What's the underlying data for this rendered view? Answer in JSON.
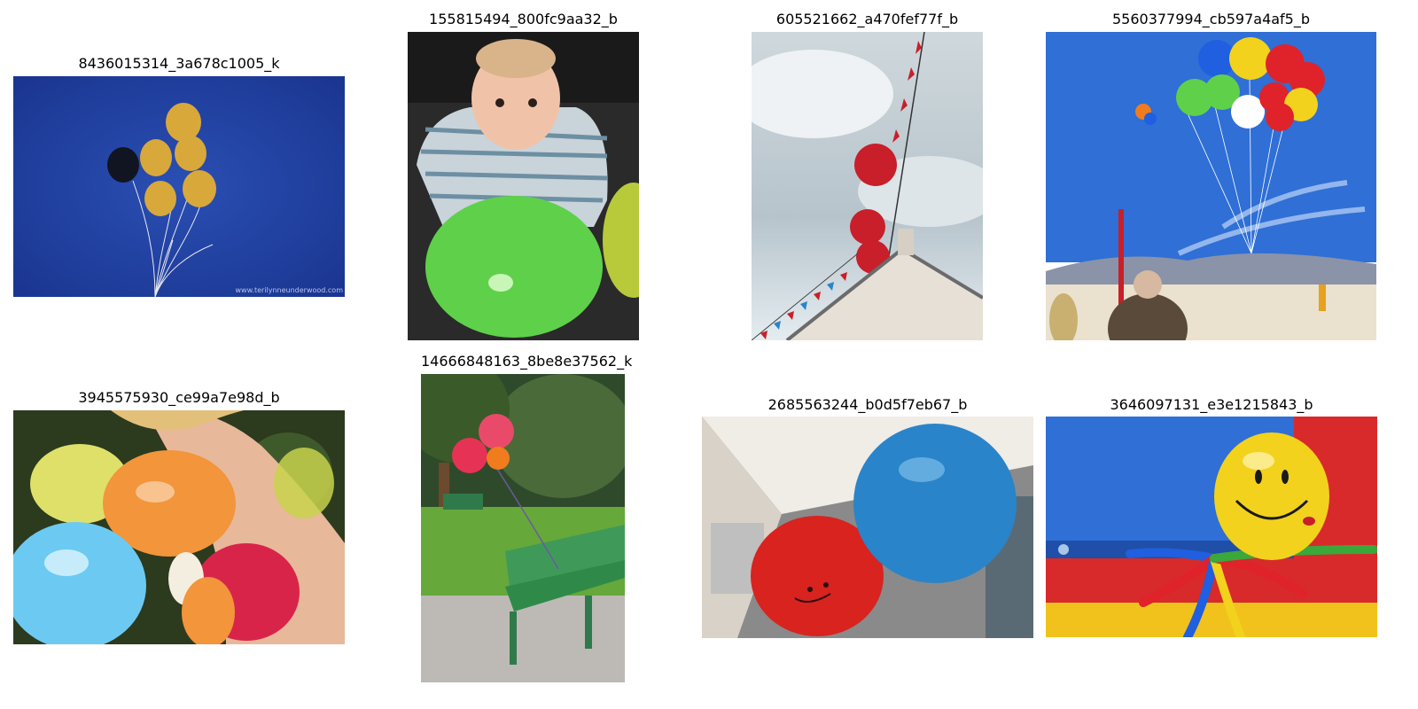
{
  "images": [
    {
      "title": "8436015314_3a678c1005_k",
      "watermark": "www.terilynneunderwood.com"
    },
    {
      "title": "155815494_800fc9aa32_b"
    },
    {
      "title": "605521662_a470fef77f_b"
    },
    {
      "title": "5560377994_cb597a4af5_b"
    },
    {
      "title": "3945575930_ce99a7e98d_b"
    },
    {
      "title": "14666848163_8be8e37562_k"
    },
    {
      "title": "2685563244_b0d5f7eb67_b"
    },
    {
      "title": "3646097131_e3e1215843_b"
    }
  ],
  "colors": {
    "background": "#ffffff",
    "night_blue": "#1f3f9e",
    "sky_blue": "#2f6fd6",
    "balloon_gold": "#d9a83a",
    "balloon_green": "#5fd04a",
    "balloon_red": "#c81f2a",
    "balloon_blue": "#2a84c9",
    "balloon_yellow": "#f2d21c"
  }
}
